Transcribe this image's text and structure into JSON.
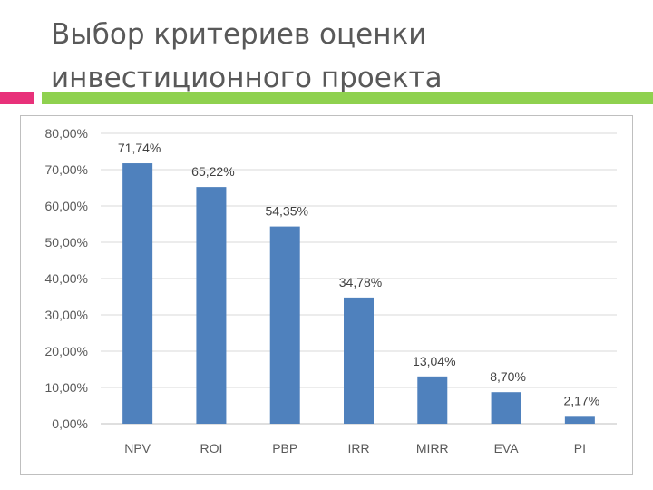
{
  "slide": {
    "title_line1": "Выбор критериев оценки",
    "title_line2": "инвестиционного проекта"
  },
  "colors": {
    "bar": "#4f81bd",
    "grid": "#d9d9d9",
    "accent_pink": "#e8317a",
    "accent_green": "#8fd14f"
  },
  "chart_data": {
    "type": "bar",
    "categories": [
      "NPV",
      "ROI",
      "PBP",
      "IRR",
      "MIRR",
      "EVA",
      "PI"
    ],
    "values": [
      71.74,
      65.22,
      54.35,
      34.78,
      13.04,
      8.7,
      2.17
    ],
    "data_labels": [
      "71,74%",
      "65,22%",
      "54,35%",
      "34,78%",
      "13,04%",
      "8,70%",
      "2,17%"
    ],
    "y_ticks": [
      0,
      10,
      20,
      30,
      40,
      50,
      60,
      70,
      80
    ],
    "y_tick_labels": [
      "0,00%",
      "10,00%",
      "20,00%",
      "30,00%",
      "40,00%",
      "50,00%",
      "60,00%",
      "70,00%",
      "80,00%"
    ],
    "ylim": [
      0,
      80
    ],
    "grid": true,
    "legend": false
  }
}
